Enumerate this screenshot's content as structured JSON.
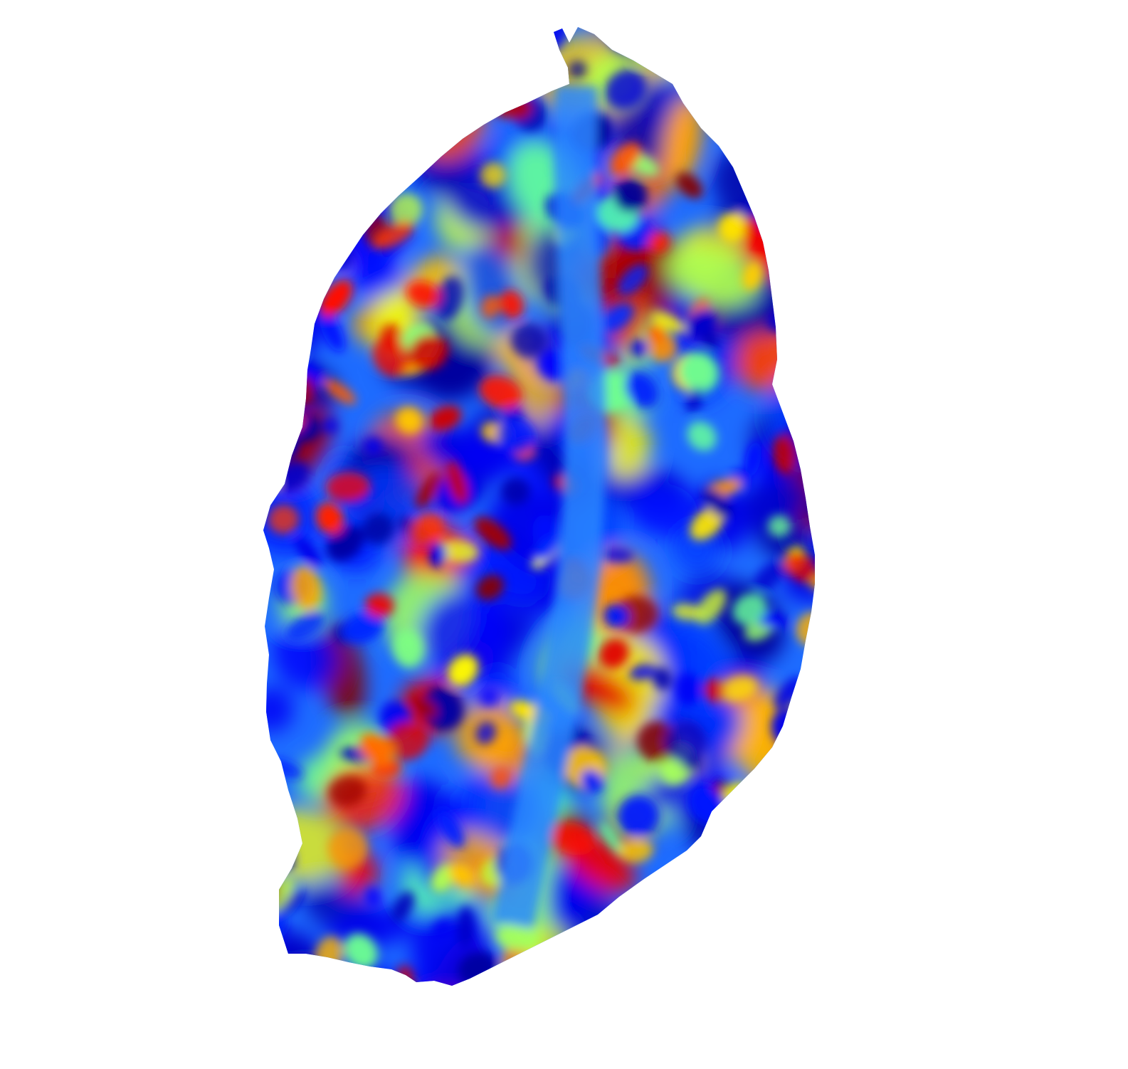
{
  "figure": {
    "background": "#ffffff",
    "colormap": "jet",
    "colormap_stops": [
      "#00008f",
      "#0000ff",
      "#0080ff",
      "#00ffff",
      "#80ff80",
      "#ffff00",
      "#ff8000",
      "#ff0000",
      "#800000"
    ]
  }
}
